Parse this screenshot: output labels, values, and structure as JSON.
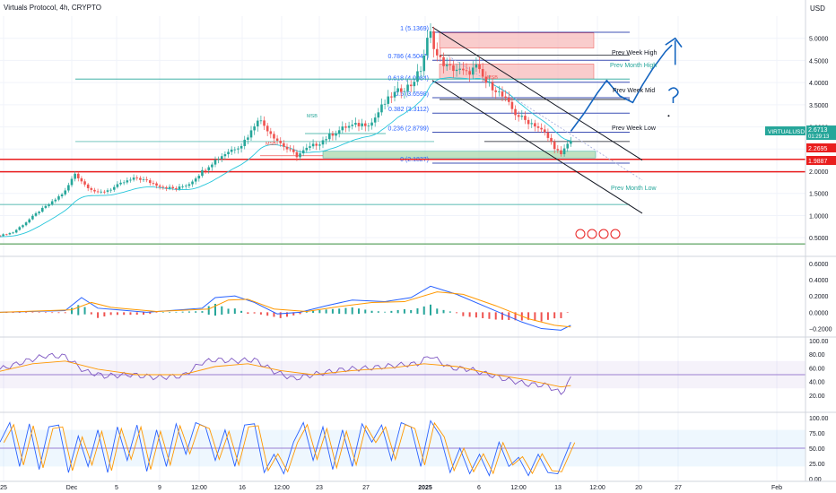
{
  "header": {
    "title": "Virtuals Protocol, 4h, CRYPTO",
    "currency": "USD"
  },
  "price_axis": {
    "ticks": [
      "5.0000",
      "4.5000",
      "4.0000",
      "3.5000",
      "3.0000",
      "2.5000",
      "2.0000",
      "1.5000",
      "1.0000",
      "0.5000"
    ]
  },
  "markers": {
    "current_symbol": "VIRTUALUSD",
    "current_price": "2.6713",
    "countdown": "01:29:13",
    "level_red_1": "2.2695",
    "level_red_2": "1.9887"
  },
  "fib_levels": [
    {
      "label": "1 (5.1369)",
      "price": 5.1369
    },
    {
      "label": "0.786 (4.5047)",
      "price": 4.5047
    },
    {
      "label": "0.618 (4.0084)",
      "price": 4.0084
    },
    {
      "label": "0.5 (3.6598)",
      "price": 3.6598
    },
    {
      "label": "0.382 (3.3112)",
      "price": 3.3112
    },
    {
      "label": "0.236 (2.8799)",
      "price": 2.8799
    },
    {
      "label": "0 (2.1827)",
      "price": 2.1827
    }
  ],
  "level_labels": {
    "prev_week_high": "Prev Week High",
    "prev_month_high": "Prev Month High",
    "prev_week_mid": "Prev Week Mid",
    "prev_week_low": "Prev Week Low",
    "prev_month_low": "Prev Month Low",
    "msb_1": "MSB",
    "msb_2": "MSB",
    "msb_3": "MSB"
  },
  "macd_axis": {
    "ticks": [
      "0.6000",
      "0.4000",
      "0.2000",
      "0.0000",
      "−0.2000"
    ]
  },
  "rsi_axis": {
    "ticks": [
      "100.00",
      "80.00",
      "60.00",
      "40.00",
      "20.00"
    ]
  },
  "stoch_axis": {
    "ticks": [
      "100.00",
      "75.00",
      "50.00",
      "25.00",
      "0.00"
    ]
  },
  "time_axis": {
    "ticks": [
      "25",
      "Dec",
      "5",
      "9",
      "12:00",
      "16",
      "12:00",
      "23",
      "27",
      "2025",
      "6",
      "12:00",
      "13",
      "12:00",
      "20",
      "27",
      "Feb"
    ]
  },
  "colors": {
    "up": "#26a69a",
    "down": "#ef5350",
    "blue": "#2962ff",
    "orange": "#ff9800",
    "purple": "#7e57c2",
    "red_line": "#e91e1e"
  },
  "chart_data": {
    "type": "candlestick",
    "title": "Virtuals Protocol, 4h, CRYPTO",
    "ylabel": "USD",
    "ylim": [
      0.2,
      5.5
    ],
    "grid": true,
    "price_path": [
      [
        0,
        0.55
      ],
      [
        4,
        0.62
      ],
      [
        8,
        0.85
      ],
      [
        12,
        1.1
      ],
      [
        16,
        1.3
      ],
      [
        20,
        1.55
      ],
      [
        23,
        1.95
      ],
      [
        26,
        1.7
      ],
      [
        30,
        1.5
      ],
      [
        34,
        1.6
      ],
      [
        38,
        1.75
      ],
      [
        42,
        1.85
      ],
      [
        46,
        1.75
      ],
      [
        50,
        1.65
      ],
      [
        54,
        1.6
      ],
      [
        58,
        1.72
      ],
      [
        62,
        2.0
      ],
      [
        66,
        2.25
      ],
      [
        70,
        2.45
      ],
      [
        74,
        2.6
      ],
      [
        77,
        2.9
      ],
      [
        79,
        3.2
      ],
      [
        82,
        2.95
      ],
      [
        85,
        2.7
      ],
      [
        88,
        2.5
      ],
      [
        91,
        2.35
      ],
      [
        94,
        2.5
      ],
      [
        98,
        2.65
      ],
      [
        102,
        2.85
      ],
      [
        106,
        3.0
      ],
      [
        110,
        3.05
      ],
      [
        114,
        3.1
      ],
      [
        117,
        3.45
      ],
      [
        120,
        3.7
      ],
      [
        123,
        3.85
      ],
      [
        126,
        3.95
      ],
      [
        129,
        4.3
      ],
      [
        131,
        4.95
      ],
      [
        132,
        5.1
      ],
      [
        134,
        4.6
      ],
      [
        137,
        4.35
      ],
      [
        140,
        4.3
      ],
      [
        143,
        4.2
      ],
      [
        146,
        4.35
      ],
      [
        149,
        4.0
      ],
      [
        152,
        3.85
      ],
      [
        155,
        3.6
      ],
      [
        158,
        3.3
      ],
      [
        161,
        3.15
      ],
      [
        164,
        3.05
      ],
      [
        167,
        2.85
      ],
      [
        170,
        2.55
      ],
      [
        172,
        2.35
      ],
      [
        174,
        2.62
      ],
      [
        175,
        2.67
      ]
    ],
    "projection": [
      [
        175,
        2.9
      ],
      [
        179,
        3.3
      ],
      [
        183,
        3.75
      ],
      [
        186,
        4.05
      ],
      [
        190,
        3.7
      ],
      [
        194,
        3.55
      ],
      [
        197,
        3.95
      ],
      [
        200,
        4.3
      ],
      [
        204,
        4.7
      ],
      [
        206,
        4.85
      ]
    ],
    "macd": {
      "ticks": [
        "0.6000",
        "0.4000",
        "0.2000",
        "0.0000",
        "−0.2000"
      ],
      "macd_path": [
        [
          0,
          0.0
        ],
        [
          20,
          0.02
        ],
        [
          25,
          0.18
        ],
        [
          30,
          0.05
        ],
        [
          45,
          0.0
        ],
        [
          62,
          0.05
        ],
        [
          66,
          0.18
        ],
        [
          72,
          0.2
        ],
        [
          78,
          0.12
        ],
        [
          85,
          -0.02
        ],
        [
          92,
          0.0
        ],
        [
          100,
          0.08
        ],
        [
          108,
          0.15
        ],
        [
          118,
          0.13
        ],
        [
          126,
          0.18
        ],
        [
          132,
          0.32
        ],
        [
          140,
          0.22
        ],
        [
          150,
          0.05
        ],
        [
          160,
          -0.12
        ],
        [
          166,
          -0.2
        ],
        [
          172,
          -0.22
        ],
        [
          175,
          -0.16
        ]
      ],
      "signal_path": [
        [
          0,
          0.0
        ],
        [
          22,
          0.03
        ],
        [
          28,
          0.12
        ],
        [
          34,
          0.06
        ],
        [
          48,
          0.01
        ],
        [
          64,
          0.04
        ],
        [
          70,
          0.15
        ],
        [
          76,
          0.16
        ],
        [
          84,
          0.04
        ],
        [
          94,
          0.01
        ],
        [
          104,
          0.07
        ],
        [
          114,
          0.12
        ],
        [
          124,
          0.13
        ],
        [
          134,
          0.25
        ],
        [
          142,
          0.22
        ],
        [
          152,
          0.08
        ],
        [
          162,
          -0.08
        ],
        [
          170,
          -0.16
        ],
        [
          175,
          -0.18
        ]
      ]
    },
    "rsi": {
      "ticks": [
        "100.00",
        "80.00",
        "60.00",
        "40.00",
        "20.00"
      ],
      "band": [
        30,
        70
      ],
      "midline": 50,
      "rsi_path": [
        [
          0,
          58
        ],
        [
          8,
          70
        ],
        [
          14,
          78
        ],
        [
          20,
          77
        ],
        [
          26,
          55
        ],
        [
          32,
          48
        ],
        [
          40,
          50
        ],
        [
          48,
          46
        ],
        [
          56,
          48
        ],
        [
          62,
          68
        ],
        [
          66,
          72
        ],
        [
          72,
          70
        ],
        [
          78,
          72
        ],
        [
          84,
          55
        ],
        [
          90,
          44
        ],
        [
          98,
          52
        ],
        [
          106,
          58
        ],
        [
          114,
          60
        ],
        [
          122,
          64
        ],
        [
          128,
          66
        ],
        [
          132,
          78
        ],
        [
          138,
          60
        ],
        [
          144,
          58
        ],
        [
          150,
          50
        ],
        [
          156,
          42
        ],
        [
          162,
          36
        ],
        [
          168,
          34
        ],
        [
          172,
          22
        ],
        [
          175,
          44
        ]
      ],
      "ma_path": [
        [
          0,
          55
        ],
        [
          10,
          66
        ],
        [
          20,
          70
        ],
        [
          30,
          58
        ],
        [
          42,
          50
        ],
        [
          56,
          50
        ],
        [
          66,
          62
        ],
        [
          76,
          66
        ],
        [
          86,
          56
        ],
        [
          96,
          50
        ],
        [
          108,
          56
        ],
        [
          120,
          60
        ],
        [
          130,
          66
        ],
        [
          140,
          62
        ],
        [
          152,
          50
        ],
        [
          162,
          42
        ],
        [
          172,
          32
        ],
        [
          175,
          34
        ]
      ]
    },
    "stoch": {
      "ticks": [
        "100.00",
        "75.00",
        "50.00",
        "25.00",
        "0.00"
      ],
      "band": [
        20,
        80
      ],
      "midline": 50,
      "k_path": [
        [
          0,
          60
        ],
        [
          3,
          92
        ],
        [
          6,
          20
        ],
        [
          9,
          90
        ],
        [
          12,
          15
        ],
        [
          15,
          85
        ],
        [
          18,
          88
        ],
        [
          21,
          10
        ],
        [
          24,
          70
        ],
        [
          27,
          20
        ],
        [
          30,
          80
        ],
        [
          33,
          10
        ],
        [
          36,
          85
        ],
        [
          39,
          30
        ],
        [
          42,
          88
        ],
        [
          45,
          12
        ],
        [
          48,
          80
        ],
        [
          51,
          20
        ],
        [
          54,
          90
        ],
        [
          57,
          40
        ],
        [
          60,
          92
        ],
        [
          63,
          85
        ],
        [
          66,
          30
        ],
        [
          69,
          80
        ],
        [
          72,
          20
        ],
        [
          75,
          88
        ],
        [
          78,
          90
        ],
        [
          81,
          10
        ],
        [
          84,
          40
        ],
        [
          87,
          8
        ],
        [
          90,
          60
        ],
        [
          93,
          92
        ],
        [
          96,
          30
        ],
        [
          99,
          85
        ],
        [
          102,
          15
        ],
        [
          105,
          80
        ],
        [
          108,
          20
        ],
        [
          111,
          90
        ],
        [
          114,
          60
        ],
        [
          117,
          88
        ],
        [
          120,
          30
        ],
        [
          123,
          92
        ],
        [
          126,
          85
        ],
        [
          129,
          20
        ],
        [
          132,
          95
        ],
        [
          135,
          70
        ],
        [
          138,
          10
        ],
        [
          141,
          50
        ],
        [
          144,
          8
        ],
        [
          147,
          40
        ],
        [
          150,
          5
        ],
        [
          153,
          60
        ],
        [
          156,
          20
        ],
        [
          159,
          35
        ],
        [
          162,
          5
        ],
        [
          165,
          40
        ],
        [
          168,
          10
        ],
        [
          171,
          8
        ],
        [
          175,
          60
        ]
      ]
    }
  }
}
